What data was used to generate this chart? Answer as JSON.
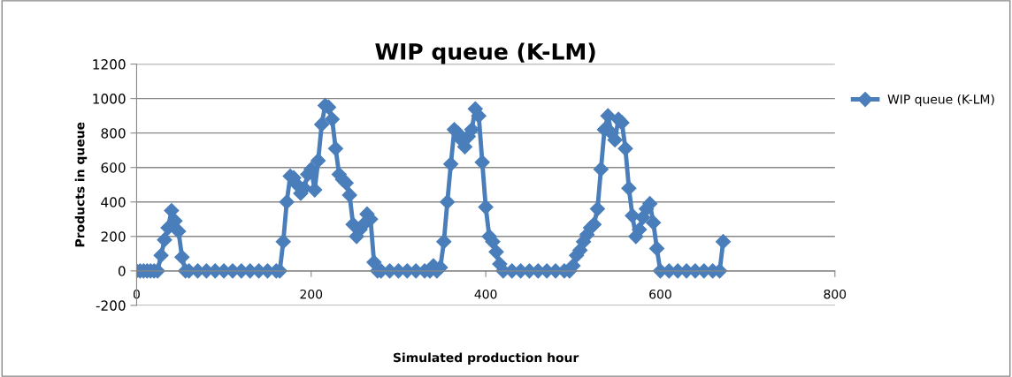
{
  "chart_data": {
    "type": "line",
    "title": "WIP queue (K-LM)",
    "xlabel": "Simulated production hour",
    "ylabel": "Products in queue",
    "xlim": [
      0,
      800
    ],
    "xticks": [
      0,
      200,
      400,
      600,
      800
    ],
    "ylim": [
      -200,
      1200
    ],
    "yticks": [
      -200,
      0,
      200,
      400,
      600,
      800,
      1000,
      1200
    ],
    "grid": "y",
    "legend": "right",
    "marker": "diamond",
    "line_style": "solid",
    "series": [
      {
        "name": "WIP queue (K-LM)",
        "color": "#4a7ebb",
        "x": [
          0,
          4,
          8,
          12,
          16,
          20,
          24,
          28,
          32,
          36,
          40,
          44,
          48,
          52,
          56,
          60,
          70,
          80,
          90,
          100,
          110,
          120,
          130,
          140,
          150,
          160,
          164,
          168,
          172,
          176,
          180,
          184,
          188,
          192,
          196,
          200,
          204,
          208,
          212,
          216,
          220,
          224,
          228,
          232,
          236,
          240,
          244,
          248,
          252,
          256,
          260,
          264,
          268,
          272,
          276,
          280,
          290,
          300,
          310,
          320,
          330,
          336,
          340,
          344,
          348,
          352,
          356,
          360,
          364,
          368,
          372,
          376,
          380,
          384,
          388,
          392,
          396,
          400,
          404,
          408,
          412,
          416,
          420,
          430,
          440,
          450,
          460,
          470,
          480,
          490,
          496,
          500,
          504,
          508,
          512,
          516,
          520,
          524,
          528,
          532,
          536,
          540,
          544,
          548,
          552,
          556,
          560,
          564,
          568,
          572,
          576,
          580,
          584,
          588,
          592,
          596,
          600,
          610,
          620,
          630,
          640,
          650,
          660,
          668,
          672
        ],
        "values": [
          0,
          0,
          0,
          0,
          0,
          0,
          0,
          90,
          180,
          250,
          350,
          290,
          230,
          80,
          0,
          0,
          0,
          0,
          0,
          0,
          0,
          0,
          0,
          0,
          0,
          0,
          0,
          170,
          400,
          550,
          540,
          500,
          450,
          480,
          560,
          590,
          470,
          640,
          850,
          960,
          950,
          880,
          710,
          560,
          530,
          510,
          440,
          270,
          200,
          240,
          270,
          330,
          300,
          50,
          0,
          0,
          0,
          0,
          0,
          0,
          0,
          0,
          30,
          0,
          20,
          170,
          400,
          620,
          820,
          800,
          760,
          720,
          780,
          820,
          940,
          900,
          630,
          370,
          200,
          170,
          110,
          40,
          0,
          0,
          0,
          0,
          0,
          0,
          0,
          0,
          0,
          30,
          90,
          120,
          170,
          210,
          250,
          270,
          360,
          590,
          820,
          900,
          800,
          760,
          880,
          860,
          710,
          480,
          320,
          200,
          240,
          310,
          360,
          390,
          280,
          130,
          0,
          0,
          0,
          0,
          0,
          0,
          0,
          0,
          170
        ]
      }
    ]
  }
}
